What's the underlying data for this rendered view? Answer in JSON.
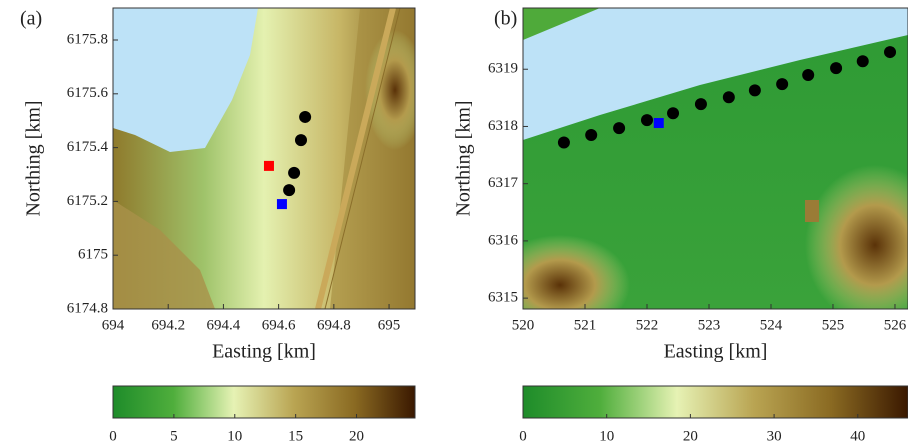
{
  "chart_data": [
    {
      "type": "scatter",
      "panel_label": "(a)",
      "xlabel": "Easting [km]",
      "ylabel": "Northing [km]",
      "xlim": [
        694,
        695.094
      ],
      "ylim": [
        6174.8,
        6175.919
      ],
      "xticks": [
        694,
        694.2,
        694.4,
        694.6,
        694.8,
        695
      ],
      "yticks": [
        6174.8,
        6175,
        6175.2,
        6175.4,
        6175.6,
        6175.8
      ],
      "series": [
        {
          "color": "#000000",
          "marker": "circle",
          "x": [
            694.696,
            694.681,
            694.656,
            694.638
          ],
          "values": [
            6175.514,
            6175.428,
            6175.306,
            6175.242
          ]
        },
        {
          "color": "#ff0000",
          "marker": "square",
          "x": [
            694.565
          ],
          "values": [
            6175.332
          ]
        },
        {
          "color": "#0000ff",
          "marker": "square",
          "x": [
            694.612
          ],
          "values": [
            6175.19
          ]
        }
      ],
      "colormap": [
        "#1e8c2a",
        "#4fae3c",
        "#e6f2b4",
        "#b9a452",
        "#8a6a22",
        "#3a1800"
      ],
      "cbar_lim": [
        0,
        24.8
      ],
      "cbar_ticks": [
        0,
        5,
        10,
        15,
        20
      ]
    },
    {
      "type": "scatter",
      "panel_label": "(b)",
      "xlabel": "Easting [km]",
      "ylabel": "Northing [km]",
      "xlim": [
        520,
        526.21
      ],
      "ylim": [
        6314.81,
        6320.07
      ],
      "xticks": [
        520,
        521,
        522,
        523,
        524,
        525,
        526
      ],
      "yticks": [
        6315,
        6316,
        6317,
        6318,
        6319
      ],
      "series": [
        {
          "color": "#000000",
          "marker": "circle",
          "x": [
            520.66,
            521.1,
            521.55,
            522.0,
            522.42,
            522.87,
            523.32,
            523.74,
            524.18,
            524.6,
            525.05,
            525.48,
            525.92
          ],
          "values": [
            6317.72,
            6317.85,
            6317.97,
            6318.11,
            6318.23,
            6318.39,
            6318.51,
            6318.63,
            6318.74,
            6318.9,
            6319.02,
            6319.14,
            6319.3
          ]
        },
        {
          "color": "#0000ff",
          "marker": "square",
          "x": [
            522.19
          ],
          "values": [
            6318.06
          ]
        }
      ],
      "colormap": [
        "#1e8c2a",
        "#4fae3c",
        "#e6f2b4",
        "#b9a452",
        "#8a6a22",
        "#3a1800"
      ],
      "cbar_lim": [
        0,
        46
      ],
      "cbar_ticks": [
        0,
        10,
        20,
        30,
        40
      ]
    }
  ]
}
